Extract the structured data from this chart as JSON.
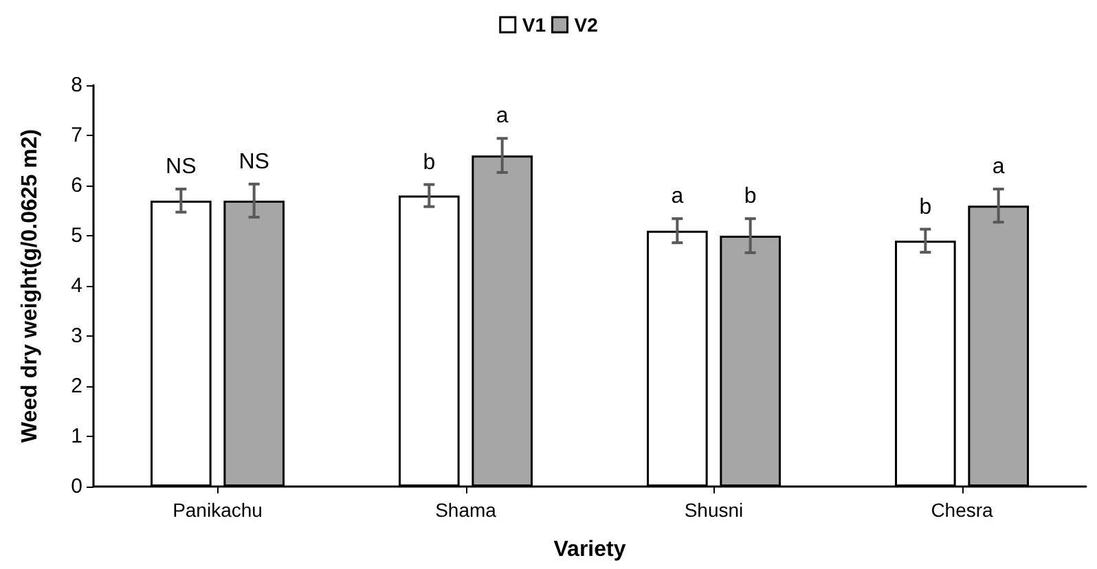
{
  "chart_data": {
    "type": "bar",
    "xlabel": "Variety",
    "ylabel": "Weed dry weight(g/0.0625 m2)",
    "categories": [
      "Panikachu",
      "Shama",
      "Shusni",
      "Chesra"
    ],
    "series": [
      {
        "name": "V1",
        "color": "#ffffff",
        "values": [
          5.7,
          5.8,
          5.1,
          4.9
        ],
        "errors": [
          0.23,
          0.22,
          0.24,
          0.23
        ],
        "value_labels": [
          "NS",
          "b",
          "a",
          "b"
        ]
      },
      {
        "name": "V2",
        "color": "#a6a6a6",
        "values": [
          5.7,
          6.6,
          5.0,
          5.6
        ],
        "errors": [
          0.33,
          0.34,
          0.34,
          0.33
        ],
        "value_labels": [
          "NS",
          "a",
          "b",
          "a"
        ]
      }
    ],
    "ylim": [
      0,
      8
    ],
    "yticks": [
      0,
      1,
      2,
      3,
      4,
      5,
      6,
      7,
      8
    ],
    "grid": false,
    "legend": "top"
  }
}
